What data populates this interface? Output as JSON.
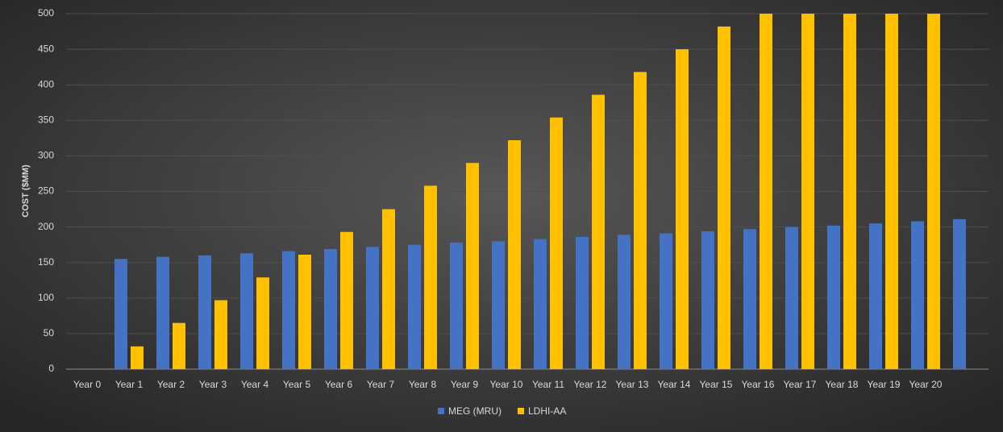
{
  "chart_data": {
    "type": "bar",
    "y_label": "COST ($MM)",
    "categories": [
      "Year 0",
      "Year 1",
      "Year 2",
      "Year 3",
      "Year 4",
      "Year 5",
      "Year 6",
      "Year 7",
      "Year 8",
      "Year 9",
      "Year 10",
      "Year 11",
      "Year 12",
      "Year 13",
      "Year 14",
      "Year 15",
      "Year 16",
      "Year 17",
      "Year 18",
      "Year 19",
      "Year 20",
      null
    ],
    "series": [
      {
        "name": "MEG (MRU)",
        "color": "#4472c4",
        "values": [
          null,
          155,
          158,
          160,
          163,
          166,
          169,
          172,
          175,
          178,
          180,
          183,
          186,
          189,
          191,
          194,
          197,
          200,
          202,
          205,
          208,
          211
        ]
      },
      {
        "name": "LDHI-AA",
        "color": "#ffc000",
        "values": [
          null,
          32,
          65,
          97,
          129,
          161,
          193,
          225,
          258,
          290,
          322,
          354,
          386,
          418,
          450,
          482,
          500,
          500,
          500,
          500,
          500,
          null
        ]
      }
    ],
    "ylim": [
      0,
      500
    ],
    "yticks": [
      0,
      50,
      100,
      150,
      200,
      250,
      300,
      350,
      400,
      450,
      500
    ],
    "grid": true,
    "legend": "bottom"
  }
}
